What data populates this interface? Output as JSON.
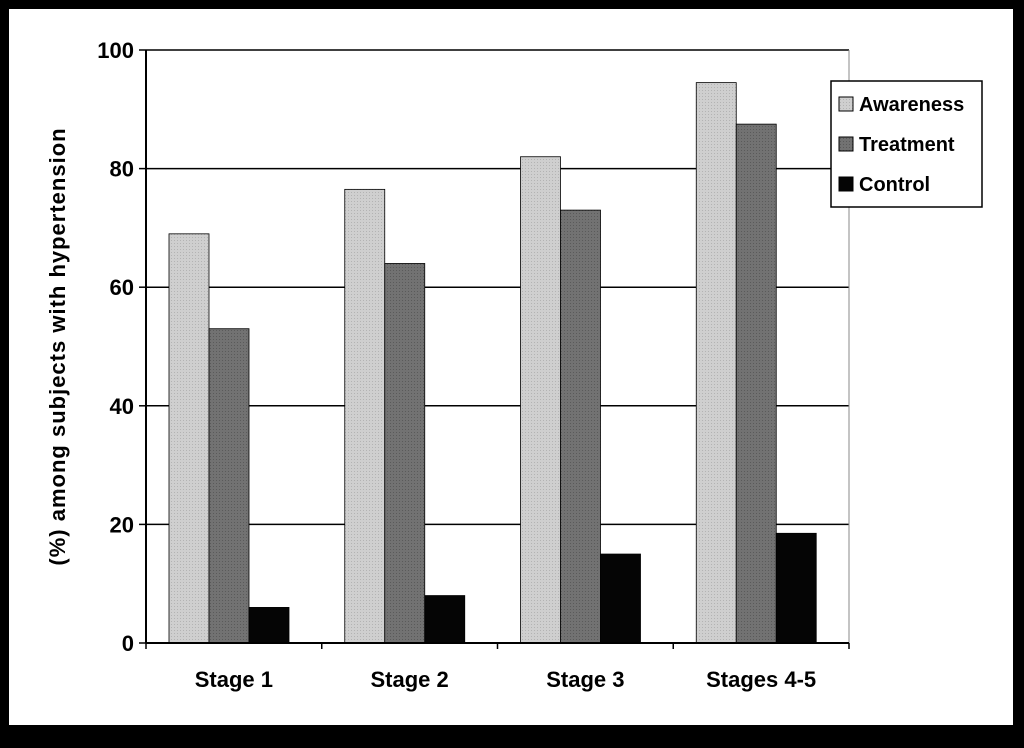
{
  "chart_data": {
    "type": "bar",
    "title": "",
    "xlabel": "",
    "ylabel": "(%) among subjects with hypertension",
    "ylim": [
      0,
      100
    ],
    "yticks": [
      0,
      20,
      40,
      60,
      80,
      100
    ],
    "grid": true,
    "legend_position": "top-right",
    "categories": [
      "Stage 1",
      "Stage 2",
      "Stage 3",
      "Stages 4-5"
    ],
    "series": [
      {
        "name": "Awareness",
        "color": "#c4c4c4",
        "values": [
          69,
          76.5,
          82,
          94.5
        ]
      },
      {
        "name": "Treatment",
        "color": "#6e6e6e",
        "values": [
          53,
          64,
          73,
          87.5
        ]
      },
      {
        "name": "Control",
        "color": "#050505",
        "values": [
          6,
          8,
          15,
          18.5
        ]
      }
    ]
  }
}
